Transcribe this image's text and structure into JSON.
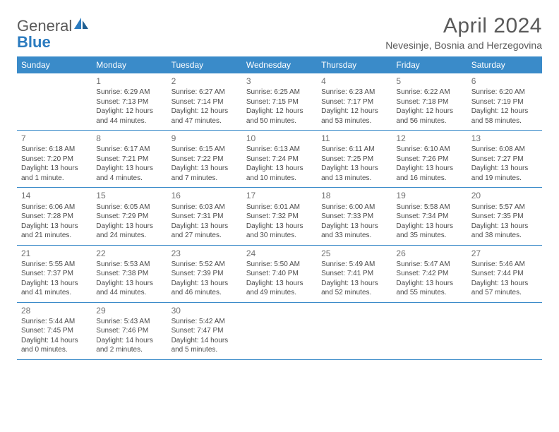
{
  "logo": {
    "text1": "General",
    "text2": "Blue"
  },
  "title": "April 2024",
  "location": "Nevesinje, Bosnia and Herzegovina",
  "colors": {
    "header_bg": "#3a8bc9",
    "header_text": "#ffffff",
    "row_border": "#3a8bc9",
    "body_text": "#4a4a4a",
    "daynum_text": "#707070",
    "logo_gray": "#5a5a5a",
    "logo_blue": "#2b7bbf"
  },
  "day_headers": [
    "Sunday",
    "Monday",
    "Tuesday",
    "Wednesday",
    "Thursday",
    "Friday",
    "Saturday"
  ],
  "weeks": [
    [
      {
        "n": "",
        "sr": "",
        "ss": "",
        "dl1": "",
        "dl2": ""
      },
      {
        "n": "1",
        "sr": "Sunrise: 6:29 AM",
        "ss": "Sunset: 7:13 PM",
        "dl1": "Daylight: 12 hours",
        "dl2": "and 44 minutes."
      },
      {
        "n": "2",
        "sr": "Sunrise: 6:27 AM",
        "ss": "Sunset: 7:14 PM",
        "dl1": "Daylight: 12 hours",
        "dl2": "and 47 minutes."
      },
      {
        "n": "3",
        "sr": "Sunrise: 6:25 AM",
        "ss": "Sunset: 7:15 PM",
        "dl1": "Daylight: 12 hours",
        "dl2": "and 50 minutes."
      },
      {
        "n": "4",
        "sr": "Sunrise: 6:23 AM",
        "ss": "Sunset: 7:17 PM",
        "dl1": "Daylight: 12 hours",
        "dl2": "and 53 minutes."
      },
      {
        "n": "5",
        "sr": "Sunrise: 6:22 AM",
        "ss": "Sunset: 7:18 PM",
        "dl1": "Daylight: 12 hours",
        "dl2": "and 56 minutes."
      },
      {
        "n": "6",
        "sr": "Sunrise: 6:20 AM",
        "ss": "Sunset: 7:19 PM",
        "dl1": "Daylight: 12 hours",
        "dl2": "and 58 minutes."
      }
    ],
    [
      {
        "n": "7",
        "sr": "Sunrise: 6:18 AM",
        "ss": "Sunset: 7:20 PM",
        "dl1": "Daylight: 13 hours",
        "dl2": "and 1 minute."
      },
      {
        "n": "8",
        "sr": "Sunrise: 6:17 AM",
        "ss": "Sunset: 7:21 PM",
        "dl1": "Daylight: 13 hours",
        "dl2": "and 4 minutes."
      },
      {
        "n": "9",
        "sr": "Sunrise: 6:15 AM",
        "ss": "Sunset: 7:22 PM",
        "dl1": "Daylight: 13 hours",
        "dl2": "and 7 minutes."
      },
      {
        "n": "10",
        "sr": "Sunrise: 6:13 AM",
        "ss": "Sunset: 7:24 PM",
        "dl1": "Daylight: 13 hours",
        "dl2": "and 10 minutes."
      },
      {
        "n": "11",
        "sr": "Sunrise: 6:11 AM",
        "ss": "Sunset: 7:25 PM",
        "dl1": "Daylight: 13 hours",
        "dl2": "and 13 minutes."
      },
      {
        "n": "12",
        "sr": "Sunrise: 6:10 AM",
        "ss": "Sunset: 7:26 PM",
        "dl1": "Daylight: 13 hours",
        "dl2": "and 16 minutes."
      },
      {
        "n": "13",
        "sr": "Sunrise: 6:08 AM",
        "ss": "Sunset: 7:27 PM",
        "dl1": "Daylight: 13 hours",
        "dl2": "and 19 minutes."
      }
    ],
    [
      {
        "n": "14",
        "sr": "Sunrise: 6:06 AM",
        "ss": "Sunset: 7:28 PM",
        "dl1": "Daylight: 13 hours",
        "dl2": "and 21 minutes."
      },
      {
        "n": "15",
        "sr": "Sunrise: 6:05 AM",
        "ss": "Sunset: 7:29 PM",
        "dl1": "Daylight: 13 hours",
        "dl2": "and 24 minutes."
      },
      {
        "n": "16",
        "sr": "Sunrise: 6:03 AM",
        "ss": "Sunset: 7:31 PM",
        "dl1": "Daylight: 13 hours",
        "dl2": "and 27 minutes."
      },
      {
        "n": "17",
        "sr": "Sunrise: 6:01 AM",
        "ss": "Sunset: 7:32 PM",
        "dl1": "Daylight: 13 hours",
        "dl2": "and 30 minutes."
      },
      {
        "n": "18",
        "sr": "Sunrise: 6:00 AM",
        "ss": "Sunset: 7:33 PM",
        "dl1": "Daylight: 13 hours",
        "dl2": "and 33 minutes."
      },
      {
        "n": "19",
        "sr": "Sunrise: 5:58 AM",
        "ss": "Sunset: 7:34 PM",
        "dl1": "Daylight: 13 hours",
        "dl2": "and 35 minutes."
      },
      {
        "n": "20",
        "sr": "Sunrise: 5:57 AM",
        "ss": "Sunset: 7:35 PM",
        "dl1": "Daylight: 13 hours",
        "dl2": "and 38 minutes."
      }
    ],
    [
      {
        "n": "21",
        "sr": "Sunrise: 5:55 AM",
        "ss": "Sunset: 7:37 PM",
        "dl1": "Daylight: 13 hours",
        "dl2": "and 41 minutes."
      },
      {
        "n": "22",
        "sr": "Sunrise: 5:53 AM",
        "ss": "Sunset: 7:38 PM",
        "dl1": "Daylight: 13 hours",
        "dl2": "and 44 minutes."
      },
      {
        "n": "23",
        "sr": "Sunrise: 5:52 AM",
        "ss": "Sunset: 7:39 PM",
        "dl1": "Daylight: 13 hours",
        "dl2": "and 46 minutes."
      },
      {
        "n": "24",
        "sr": "Sunrise: 5:50 AM",
        "ss": "Sunset: 7:40 PM",
        "dl1": "Daylight: 13 hours",
        "dl2": "and 49 minutes."
      },
      {
        "n": "25",
        "sr": "Sunrise: 5:49 AM",
        "ss": "Sunset: 7:41 PM",
        "dl1": "Daylight: 13 hours",
        "dl2": "and 52 minutes."
      },
      {
        "n": "26",
        "sr": "Sunrise: 5:47 AM",
        "ss": "Sunset: 7:42 PM",
        "dl1": "Daylight: 13 hours",
        "dl2": "and 55 minutes."
      },
      {
        "n": "27",
        "sr": "Sunrise: 5:46 AM",
        "ss": "Sunset: 7:44 PM",
        "dl1": "Daylight: 13 hours",
        "dl2": "and 57 minutes."
      }
    ],
    [
      {
        "n": "28",
        "sr": "Sunrise: 5:44 AM",
        "ss": "Sunset: 7:45 PM",
        "dl1": "Daylight: 14 hours",
        "dl2": "and 0 minutes."
      },
      {
        "n": "29",
        "sr": "Sunrise: 5:43 AM",
        "ss": "Sunset: 7:46 PM",
        "dl1": "Daylight: 14 hours",
        "dl2": "and 2 minutes."
      },
      {
        "n": "30",
        "sr": "Sunrise: 5:42 AM",
        "ss": "Sunset: 7:47 PM",
        "dl1": "Daylight: 14 hours",
        "dl2": "and 5 minutes."
      },
      {
        "n": "",
        "sr": "",
        "ss": "",
        "dl1": "",
        "dl2": ""
      },
      {
        "n": "",
        "sr": "",
        "ss": "",
        "dl1": "",
        "dl2": ""
      },
      {
        "n": "",
        "sr": "",
        "ss": "",
        "dl1": "",
        "dl2": ""
      },
      {
        "n": "",
        "sr": "",
        "ss": "",
        "dl1": "",
        "dl2": ""
      }
    ]
  ]
}
